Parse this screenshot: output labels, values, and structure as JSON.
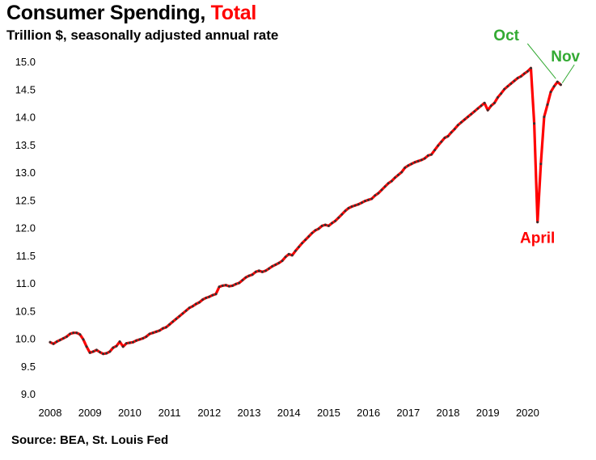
{
  "title_main": "Consumer Spending,",
  "title_accent": "Total",
  "subtitle": "Trillion $, seasonally adjusted annual rate",
  "source": "Source: BEA, St. Louis Fed",
  "colors": {
    "line": "#ff0000",
    "marker": "#333333",
    "accent": "#ff0000",
    "green": "#33aa33"
  },
  "chart_data": {
    "type": "line",
    "title": "Consumer Spending, Total",
    "ylabel": "Trillion $, seasonally adjusted annual rate",
    "xlabel": "",
    "ylim": [
      9.0,
      15.0
    ],
    "y_ticks": [
      "9.0",
      "9.5",
      "10.0",
      "10.5",
      "11.0",
      "11.5",
      "12.0",
      "12.5",
      "13.0",
      "13.5",
      "14.0",
      "14.5",
      "15.0"
    ],
    "x_ticks": [
      "2008",
      "2009",
      "2010",
      "2011",
      "2012",
      "2013",
      "2014",
      "2015",
      "2016",
      "2017",
      "2018",
      "2019",
      "2020"
    ],
    "x_start_year": 2008,
    "grid": false,
    "annotations": [
      {
        "label": "Oct",
        "year": 2020.75,
        "value": 14.63,
        "color": "green"
      },
      {
        "label": "Nov",
        "year": 2020.83,
        "value": 14.58,
        "color": "green"
      },
      {
        "label": "April",
        "year": 2020.25,
        "value": 12.1,
        "color": "red"
      }
    ],
    "series": [
      {
        "name": "Consumer Spending",
        "frequency": "monthly",
        "start": "2008-01",
        "values": [
          9.93,
          9.9,
          9.94,
          9.97,
          10.0,
          10.03,
          10.08,
          10.1,
          10.1,
          10.07,
          9.98,
          9.85,
          9.74,
          9.76,
          9.79,
          9.75,
          9.72,
          9.73,
          9.76,
          9.83,
          9.86,
          9.94,
          9.85,
          9.91,
          9.92,
          9.93,
          9.96,
          9.98,
          10.0,
          10.03,
          10.08,
          10.1,
          10.12,
          10.14,
          10.18,
          10.2,
          10.25,
          10.3,
          10.35,
          10.4,
          10.45,
          10.5,
          10.55,
          10.58,
          10.62,
          10.65,
          10.7,
          10.73,
          10.75,
          10.78,
          10.8,
          10.93,
          10.95,
          10.96,
          10.94,
          10.95,
          10.98,
          11.0,
          11.05,
          11.1,
          11.13,
          11.15,
          11.2,
          11.22,
          11.2,
          11.22,
          11.26,
          11.3,
          11.33,
          11.36,
          11.4,
          11.47,
          11.52,
          11.5,
          11.58,
          11.65,
          11.72,
          11.78,
          11.84,
          11.9,
          11.95,
          11.98,
          12.03,
          12.05,
          12.03,
          12.08,
          12.12,
          12.18,
          12.24,
          12.3,
          12.35,
          12.38,
          12.4,
          12.42,
          12.45,
          12.48,
          12.5,
          12.52,
          12.58,
          12.62,
          12.68,
          12.74,
          12.8,
          12.84,
          12.9,
          12.95,
          13.0,
          13.08,
          13.12,
          13.15,
          13.18,
          13.2,
          13.22,
          13.25,
          13.3,
          13.32,
          13.4,
          13.48,
          13.55,
          13.62,
          13.65,
          13.72,
          13.78,
          13.85,
          13.9,
          13.95,
          14.0,
          14.05,
          14.1,
          14.15,
          14.2,
          14.25,
          14.12,
          14.2,
          14.25,
          14.35,
          14.42,
          14.5,
          14.55,
          14.6,
          14.65,
          14.7,
          14.73,
          14.78,
          14.82,
          14.88,
          13.88,
          12.1,
          13.15,
          14.0,
          14.22,
          14.45,
          14.55,
          14.63,
          14.58
        ]
      }
    ]
  }
}
